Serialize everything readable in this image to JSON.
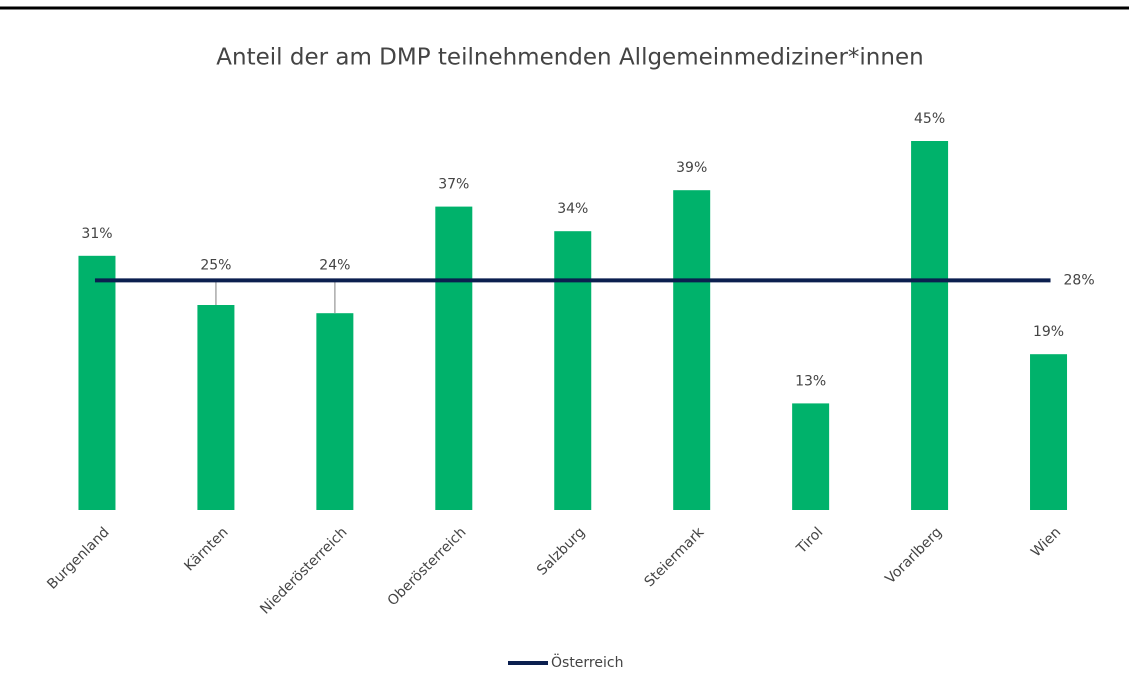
{
  "chart_data": {
    "type": "bar",
    "title": "Anteil der am DMP teilnehmenden Allgemeinmediziner*innen",
    "categories": [
      "Burgenland",
      "Kärnten",
      "Niederösterreich",
      "Oberösterreich",
      "Salzburg",
      "Steiermark",
      "Tirol",
      "Vorarlberg",
      "Wien"
    ],
    "values": [
      31,
      25,
      24,
      37,
      34,
      39,
      13,
      45,
      19
    ],
    "value_labels": [
      "31%",
      "25%",
      "24%",
      "37%",
      "34%",
      "39%",
      "13%",
      "45%",
      "19%"
    ],
    "color": "#00b26b",
    "ylim": [
      0,
      50
    ],
    "reference": {
      "name": "Österreich",
      "value": 28,
      "value_label": "28%",
      "color": "#0b1f4f"
    }
  }
}
